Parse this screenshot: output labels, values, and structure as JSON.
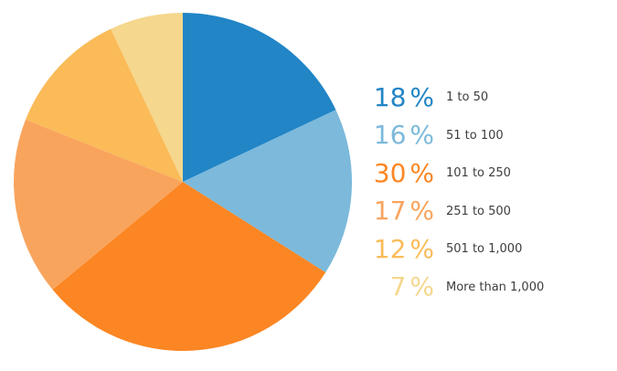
{
  "figure": {
    "background": "#ffffff",
    "label_text_color": "#3d3d3d"
  },
  "chart_data": {
    "type": "pie",
    "title": "",
    "start_angle_deg": 0,
    "direction": "clockwise",
    "legend_position": "right",
    "percent_sign": "%",
    "slices": [
      {
        "label": "1 to 50",
        "value_pct": 18,
        "color": "#2185C6"
      },
      {
        "label": "51 to 100",
        "value_pct": 16,
        "color": "#7CB9DB"
      },
      {
        "label": "101 to 250",
        "value_pct": 30,
        "color": "#FB8623"
      },
      {
        "label": "251 to 500",
        "value_pct": 17,
        "color": "#F9A45D"
      },
      {
        "label": "501 to 1,000",
        "value_pct": 12,
        "color": "#FABB58"
      },
      {
        "label": "More than 1,000",
        "value_pct": 7,
        "color": "#F5D78D"
      }
    ]
  }
}
